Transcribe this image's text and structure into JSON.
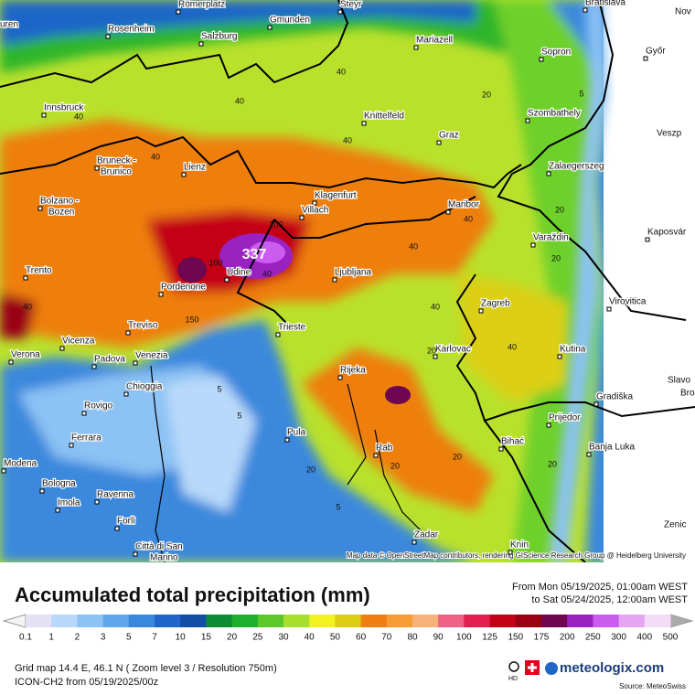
{
  "map": {
    "cities": [
      {
        "name": "uren"
      },
      {
        "name": "Römerplatz"
      },
      {
        "name": "Steyr"
      },
      {
        "name": "Bratislava"
      },
      {
        "name": "Nov"
      },
      {
        "name": "Gmunden"
      },
      {
        "name": "Rosenheim"
      },
      {
        "name": "Salzburg"
      },
      {
        "name": "Mariazell"
      },
      {
        "name": "Sopron"
      },
      {
        "name": "Győr"
      },
      {
        "name": "Innsbruck"
      },
      {
        "name": "Knittelfeld"
      },
      {
        "name": "Szombathely"
      },
      {
        "name": "Graz"
      },
      {
        "name": "Veszp"
      },
      {
        "name": "Bruneck -"
      },
      {
        "name": "Brunico"
      },
      {
        "name": "Lienz"
      },
      {
        "name": "Zalaegerszeg"
      },
      {
        "name": "Klagenfurt"
      },
      {
        "name": "Villach"
      },
      {
        "name": "Maribor"
      },
      {
        "name": "Bolzano -"
      },
      {
        "name": "Bozen"
      },
      {
        "name": "Varaždin"
      },
      {
        "name": "Kaposvár"
      },
      {
        "name": "Trento"
      },
      {
        "name": "Udine"
      },
      {
        "name": "Ljubljana"
      },
      {
        "name": "Pordenone"
      },
      {
        "name": "Zagreb"
      },
      {
        "name": "Virovitica"
      },
      {
        "name": "Treviso"
      },
      {
        "name": "Trieste"
      },
      {
        "name": "Vicenza"
      },
      {
        "name": "Karlovac"
      },
      {
        "name": "Kutina"
      },
      {
        "name": "Verona"
      },
      {
        "name": "Padova"
      },
      {
        "name": "Venezia"
      },
      {
        "name": "Rijeka"
      },
      {
        "name": "Slavo"
      },
      {
        "name": "Bro"
      },
      {
        "name": "Chioggia"
      },
      {
        "name": "Gradiška"
      },
      {
        "name": "Rovigo"
      },
      {
        "name": "Prijedor"
      },
      {
        "name": "Ferrara"
      },
      {
        "name": "Pula"
      },
      {
        "name": "Rab"
      },
      {
        "name": "Bihać"
      },
      {
        "name": "Banja Luka"
      },
      {
        "name": "Modena"
      },
      {
        "name": "Bologna"
      },
      {
        "name": "Imola"
      },
      {
        "name": "Ravenna"
      },
      {
        "name": "Forlì"
      },
      {
        "name": "Zadar"
      },
      {
        "name": "Knin"
      },
      {
        "name": "Zenic"
      },
      {
        "name": "Città di San"
      },
      {
        "name": "Marino"
      }
    ],
    "contour_labels": [
      "40",
      "40",
      "40",
      "20",
      "5",
      "40",
      "40",
      "20",
      "100",
      "150",
      "100",
      "40",
      "40",
      "20",
      "40",
      "20",
      "40",
      "5",
      "5",
      "20",
      "20",
      "5",
      "20",
      "20",
      "40",
      "40"
    ],
    "peak_label": "337",
    "attribution": "Map data © OpenStreetMap contributors, rendering GIScience Research Group @ Heidelberg University"
  },
  "header": {
    "title": "Accumulated total precipitation (mm)",
    "from": "From Mon 05/19/2025, 01:00am WEST",
    "to": "to Sat 05/24/2025, 12:00am WEST"
  },
  "legend": {
    "levels": [
      0.1,
      1,
      2,
      3,
      5,
      7,
      10,
      15,
      20,
      25,
      30,
      40,
      50,
      60,
      70,
      80,
      90,
      100,
      125,
      150,
      175,
      200,
      250,
      300,
      400,
      500
    ],
    "colors": [
      "#e4e0f6",
      "#b9d9fa",
      "#8cc2f4",
      "#5ea7ea",
      "#3a88dd",
      "#1f66c8",
      "#134ea6",
      "#0e8c35",
      "#1eb02a",
      "#5cc92a",
      "#a6df2c",
      "#f2f220",
      "#dccf12",
      "#ee7f10",
      "#f79b33",
      "#f7b27a",
      "#ef5f86",
      "#e51e50",
      "#c40016",
      "#9a0012",
      "#6f0650",
      "#9a22c0",
      "#cc5cf0",
      "#e6a4f2",
      "#f4dcf8"
    ]
  },
  "footer": {
    "grid": "Grid map 14.4 E, 46.1 N ( Zoom level 3 / Resolution 750m)",
    "model": "ICON-CH2 from  05/19/2025/00z",
    "hd": "HD",
    "brand": "meteologix.com",
    "source": "Source: MeteoSwiss"
  }
}
